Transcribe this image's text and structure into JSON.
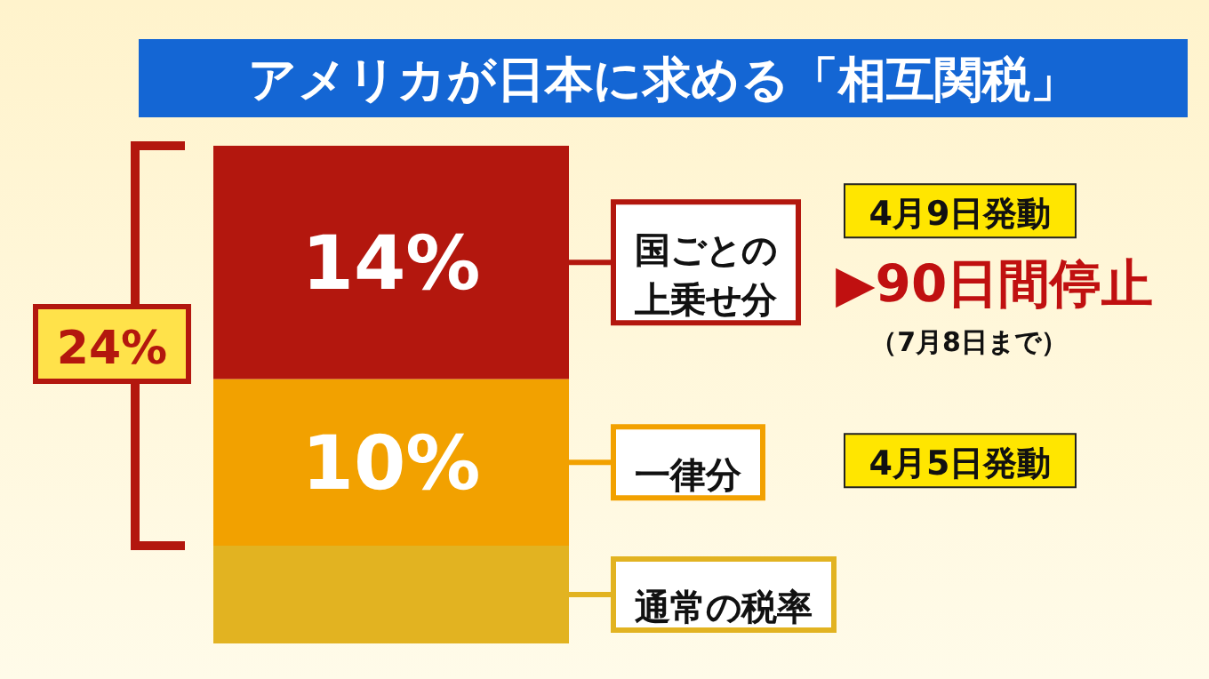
{
  "chart_data": {
    "type": "bar",
    "stacked": true,
    "legend": "right",
    "title": "アメリカが日本に求める「相互関税」",
    "categories": [
      null
    ],
    "series": [
      {
        "name": "通常の税率",
        "color": "#e2b321",
        "values": [
          null
        ]
      },
      {
        "name": "一律分",
        "color": "#f2a100",
        "values": [
          10
        ],
        "value_labels": [
          "10%"
        ]
      },
      {
        "name": "国ごとの上乗せ分",
        "color": "#b3170e",
        "values": [
          14
        ],
        "value_labels": [
          "14%"
        ]
      }
    ],
    "annotations": [
      "24%",
      "4月5日発動",
      "4月9日発動",
      "▶90日間停止",
      "（7月8日まで）"
    ]
  }
}
